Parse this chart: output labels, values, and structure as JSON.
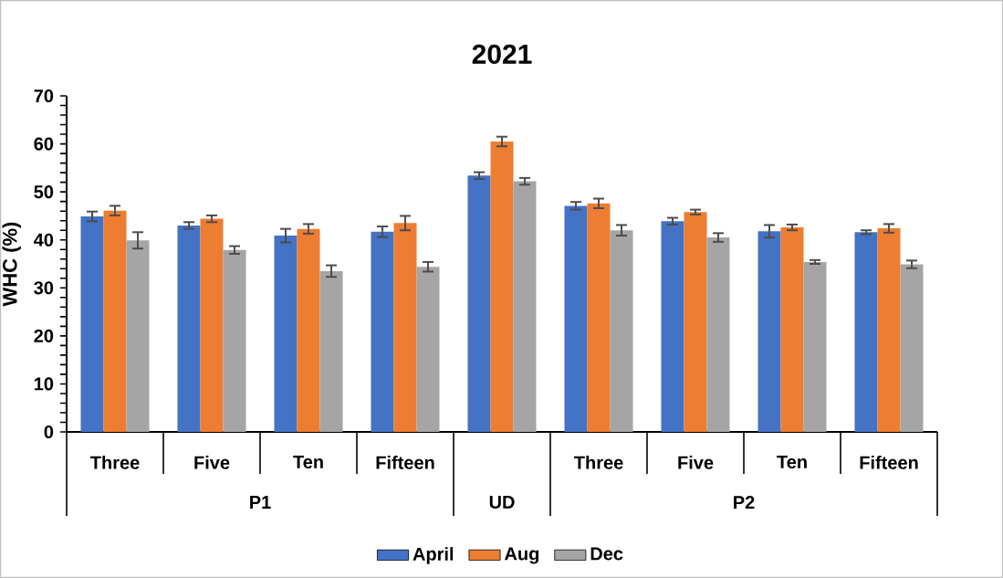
{
  "chart_data": {
    "type": "bar",
    "title": "2021",
    "ylabel": "WHC (%)",
    "categories": [
      "Three",
      "Five",
      "Ten",
      "Fifteen",
      null,
      "Three",
      "Five",
      "Ten",
      "Fifteen"
    ],
    "series": [
      {
        "name": "April",
        "color": "#4472c4",
        "values": [
          44.9,
          43.0,
          40.9,
          41.7,
          53.4,
          47.1,
          43.9,
          41.8,
          41.6
        ],
        "errors": [
          1.0,
          0.7,
          1.4,
          1.1,
          0.7,
          0.8,
          0.7,
          1.3,
          0.4
        ]
      },
      {
        "name": "Aug",
        "color": "#ed7d31",
        "values": [
          46.1,
          44.4,
          42.3,
          43.5,
          60.5,
          47.6,
          45.8,
          42.6,
          42.4
        ],
        "errors": [
          1.0,
          0.7,
          1.0,
          1.5,
          1.0,
          1.0,
          0.5,
          0.6,
          0.9
        ]
      },
      {
        "name": "Dec",
        "color": "#a5a5a5",
        "values": [
          39.9,
          37.9,
          33.5,
          34.4,
          52.2,
          42.0,
          40.5,
          35.4,
          34.9
        ],
        "errors": [
          1.7,
          0.8,
          1.2,
          1.0,
          0.7,
          1.1,
          0.9,
          0.4,
          0.8
        ]
      }
    ],
    "ylim": [
      0,
      70
    ],
    "yticks": [
      0,
      10,
      20,
      30,
      40,
      50,
      60,
      70
    ],
    "legend": "bottom",
    "annotations": [
      "P1",
      "UD",
      "P2"
    ]
  }
}
